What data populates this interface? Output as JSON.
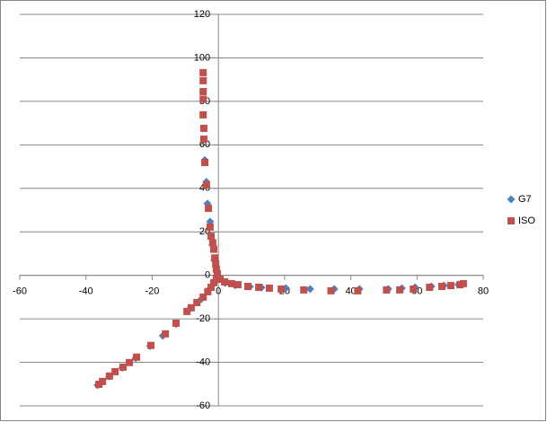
{
  "chart_data": {
    "type": "scatter",
    "xlim": [
      -60,
      80
    ],
    "xticks": [
      -60,
      -40,
      -20,
      0,
      20,
      40,
      60,
      80
    ],
    "ylim": [
      -60,
      120
    ],
    "yticks": [
      -60,
      -40,
      -20,
      0,
      20,
      40,
      60,
      80,
      100,
      120
    ],
    "grid": true,
    "legend": "right",
    "series": [
      {
        "name": "G7",
        "color": "#4f81bd",
        "marker": "diamond",
        "x": [
          -4.1,
          -3.6,
          -3.3,
          -2.5,
          -1.8,
          -1.2,
          -0.6,
          0.3,
          2.0,
          5.0,
          9.5,
          13,
          20.4,
          27.7,
          35,
          42.6,
          51.3,
          55.4,
          59.4,
          64.3,
          68.1,
          72.5,
          -0.8,
          -2.8,
          -5.2,
          -9.0,
          -12.8,
          -16.8,
          -20.6,
          -25,
          -29,
          -33,
          -36.5
        ],
        "values": [
          53,
          43,
          33,
          24.7,
          14,
          7,
          2,
          -1,
          -3.5,
          -4.6,
          -5.2,
          -5.6,
          -5.9,
          -6.3,
          -6.3,
          -6.3,
          -6.3,
          -5.9,
          -5.5,
          -5.1,
          -4.7,
          -4.2,
          -2,
          -6.5,
          -11,
          -16,
          -22.4,
          -27.8,
          -32.5,
          -38,
          -42.5,
          -46.5,
          -50.5
        ]
      },
      {
        "name": "ISO",
        "color": "#c0504d",
        "marker": "square",
        "x": [
          -4.6,
          -4.6,
          -4.6,
          -4.6,
          -4.6,
          -4.4,
          -4.4,
          -4.1,
          -3.6,
          -3.0,
          -2.5,
          -2.2,
          -1.7,
          -1.4,
          -1.1,
          -0.8,
          -0.6,
          -0.3,
          0.5,
          1.9,
          4.0,
          5.9,
          8.9,
          12.2,
          15.4,
          19.0,
          25.8,
          34.0,
          42.1,
          50.8,
          54.8,
          58.9,
          63.8,
          67.5,
          70.2,
          73.0,
          74.0,
          -0.6,
          -1.4,
          -2.2,
          -3.2,
          -4.6,
          -6.5,
          -8.2,
          -9.5,
          -12.8,
          -16.0,
          -20.4,
          -24.7,
          -26.9,
          -28.8,
          -31.2,
          -32.9,
          -35.0,
          -36.1
        ],
        "values": [
          93.2,
          89.5,
          84.5,
          81,
          73.8,
          67.6,
          62.6,
          51.9,
          41.6,
          30.8,
          22.2,
          18,
          15,
          12,
          8,
          5.2,
          2.8,
          0.7,
          -1.8,
          -3.0,
          -3.8,
          -4.3,
          -5.1,
          -5.5,
          -5.9,
          -6.3,
          -6.7,
          -7.1,
          -7.1,
          -6.7,
          -6.7,
          -6.3,
          -5.5,
          -5.1,
          -4.7,
          -4.3,
          -3.8,
          -1.3,
          -3.4,
          -5.5,
          -7.5,
          -10.0,
          -12.5,
          -14.9,
          -16.6,
          -22.0,
          -26.9,
          -32.2,
          -37.6,
          -40.1,
          -42.2,
          -44.3,
          -46.3,
          -48.8,
          -50.1
        ]
      }
    ]
  }
}
